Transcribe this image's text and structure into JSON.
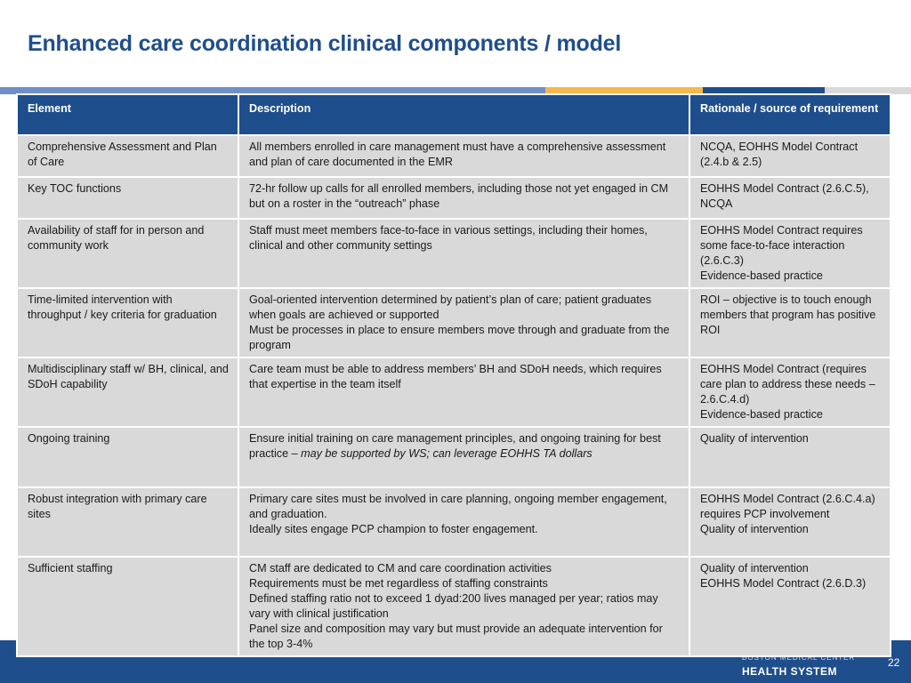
{
  "slide": {
    "title": "Enhanced care coordination clinical components / model",
    "page_number": "22",
    "logo": {
      "name": "HEALTH SYSTEM",
      "tagline": "BOSTON MEDICAL CENTER"
    }
  },
  "colors": {
    "title": "#1f4e8c",
    "header_bg": "#1f4e8c",
    "cell_bg": "#d9d9d9",
    "bar_1": "#6f8fc9",
    "bar_2": "#f3b84f",
    "bar_3": "#1f4e8c",
    "bar_4": "#d9d9d9"
  },
  "table": {
    "headers": [
      "Element",
      "Description",
      "Rationale / source of requirement"
    ],
    "rows": [
      {
        "element": "Comprehensive Assessment and Plan of Care",
        "description": [
          "All members enrolled in care management must have a comprehensive assessment and plan of care documented in the EMR"
        ],
        "rationale": [
          "NCQA, EOHHS Model Contract (2.4.b & 2.5)"
        ]
      },
      {
        "element": "Key TOC functions",
        "description": [
          "72-hr follow up calls for all enrolled members, including those not yet engaged in CM but on a roster in the “outreach” phase"
        ],
        "rationale": [
          "EOHHS Model Contract (2.6.C.5), NCQA"
        ]
      },
      {
        "element": "Availability of staff for in person and community work",
        "description": [
          "Staff must meet members face-to-face in various settings, including their homes, clinical and other community settings"
        ],
        "rationale": [
          "EOHHS Model Contract requires some face-to-face interaction (2.6.C.3)",
          "Evidence-based practice"
        ]
      },
      {
        "element": "Time-limited intervention with throughput / key criteria for graduation",
        "description": [
          "Goal-oriented intervention determined by patient’s plan of care; patient graduates when goals are achieved or supported",
          "Must be processes in place to ensure members move through and graduate from the program"
        ],
        "rationale": [
          "ROI – objective is to touch enough members that program has positive ROI"
        ]
      },
      {
        "element": "Multidisciplinary staff w/ BH, clinical, and SDoH capability",
        "description": [
          "Care team must be able to address members’ BH and SDoH needs, which requires that expertise in the team itself"
        ],
        "rationale": [
          "EOHHS Model Contract (requires care plan to address these needs – 2.6.C.4.d)",
          "Evidence-based practice"
        ]
      },
      {
        "element": "Ongoing training",
        "description_main": "Ensure initial training on care management principles, and ongoing training for best practice – ",
        "description_italic": "may be supported by WS; can leverage EOHHS TA dollars",
        "rationale": [
          "Quality of intervention"
        ]
      },
      {
        "element": "Robust integration with primary care sites",
        "description": [
          "Primary care sites must be involved in care planning, ongoing member engagement, and graduation.",
          "Ideally sites engage PCP champion to foster engagement."
        ],
        "rationale": [
          "EOHHS Model Contract (2.6.C.4.a) requires PCP involvement",
          "Quality of intervention"
        ]
      },
      {
        "element": "Sufficient staffing",
        "description": [
          "CM staff are dedicated to CM and care coordination activities",
          "Requirements must be met regardless of staffing constraints",
          "Defined staffing ratio not to exceed 1 dyad:200 lives managed per year; ratios may vary with clinical justification",
          "Panel size and composition may vary but must provide an adequate intervention for the top 3-4%"
        ],
        "rationale": [
          "Quality of intervention",
          "EOHHS Model Contract (2.6.D.3)"
        ]
      }
    ]
  }
}
